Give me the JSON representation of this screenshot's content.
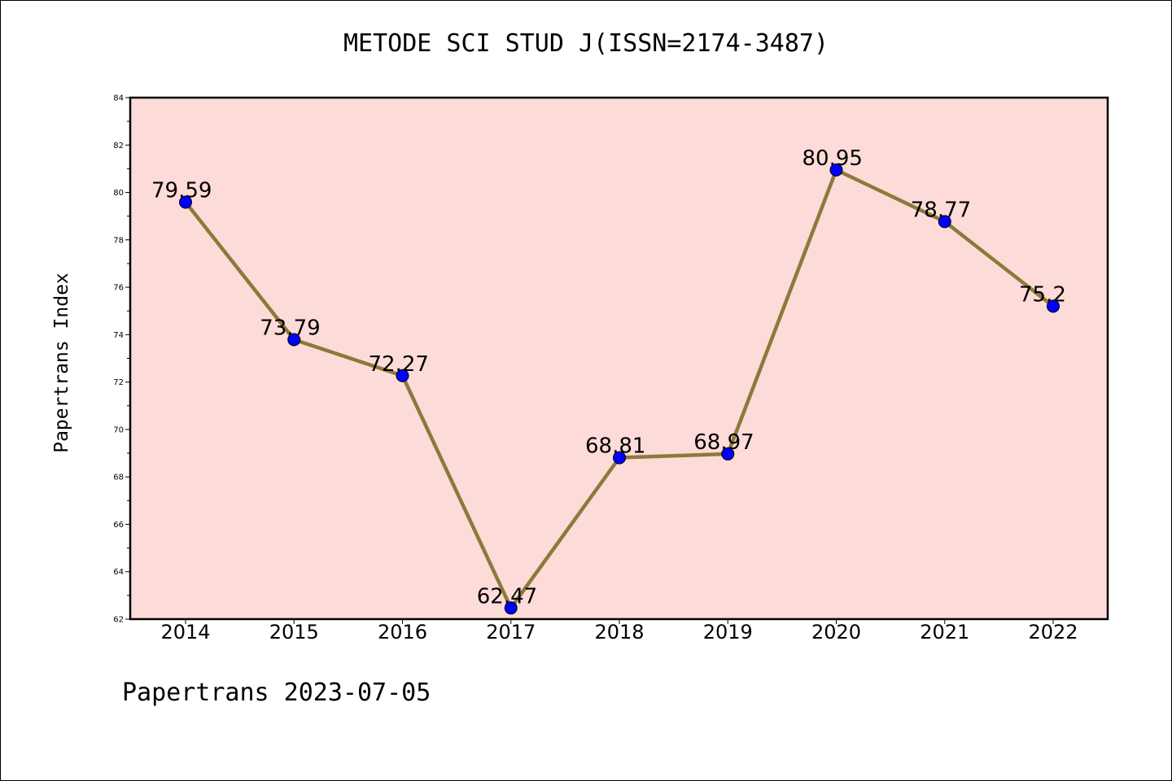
{
  "chart_data": {
    "type": "line",
    "title": "METODE SCI STUD J(ISSN=2174-3487)",
    "ylabel": "Papertrans Index",
    "xlabel": "",
    "footer": "Papertrans 2023-07-05",
    "categories": [
      "2014",
      "2015",
      "2016",
      "2017",
      "2018",
      "2019",
      "2020",
      "2021",
      "2022"
    ],
    "series": [
      {
        "values": [
          79.59,
          73.79,
          72.27,
          62.47,
          68.81,
          68.97,
          80.95,
          78.77,
          75.2
        ],
        "labels": [
          "79.59",
          "73.79",
          "72.27",
          "62.47",
          "68.81",
          "68.97",
          "80.95",
          "78.77",
          "75.2"
        ]
      }
    ],
    "ylim": [
      62,
      84
    ],
    "yticks": [
      "62",
      "64",
      "66",
      "68",
      "70",
      "72",
      "74",
      "76",
      "78",
      "80",
      "82",
      "84"
    ],
    "grid": false,
    "colors": {
      "plot_background": "#fddbd8",
      "line": "#8b7a3a",
      "marker": "#0000ff"
    }
  }
}
